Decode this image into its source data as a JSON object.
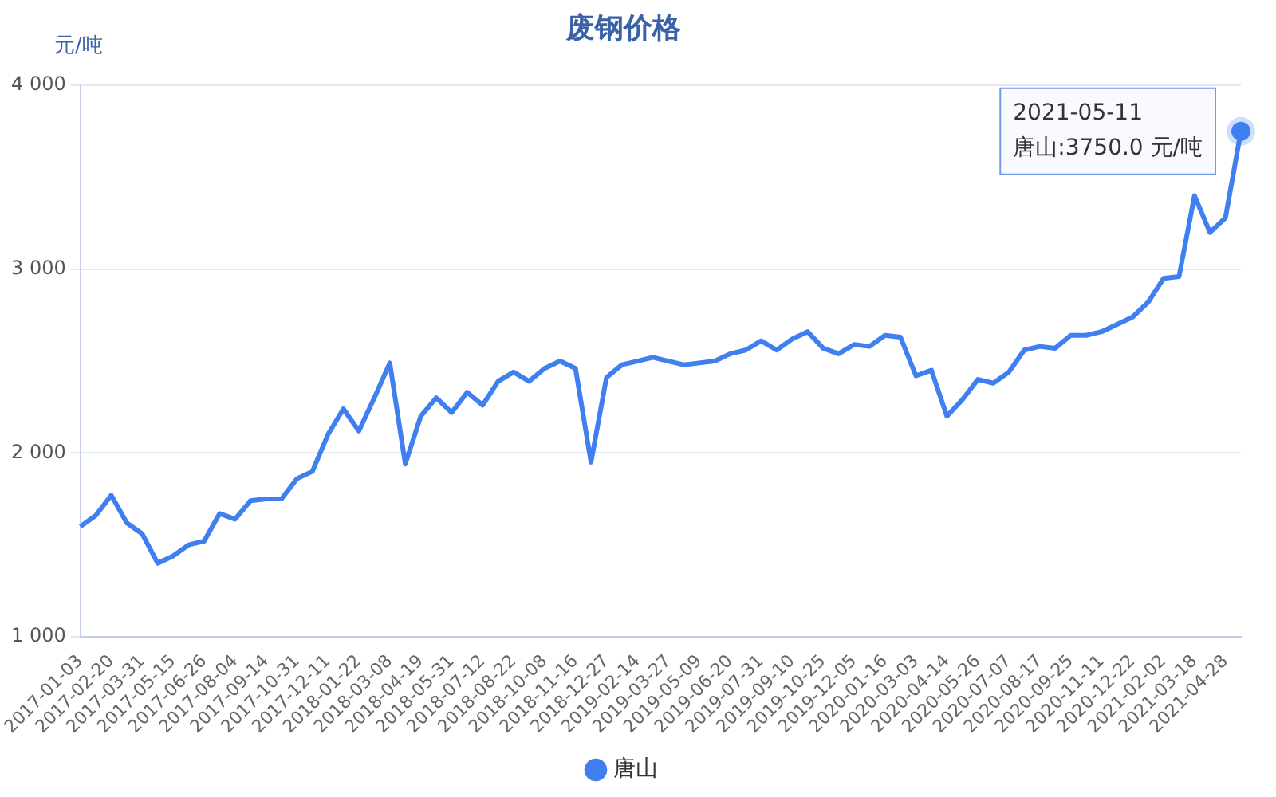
{
  "chart_data": {
    "type": "line",
    "title": "废钢价格",
    "ylabel": "元/吨",
    "categories": [
      "2017-01-03",
      null,
      "2017-02-20",
      null,
      "2017-03-31",
      null,
      "2017-05-15",
      null,
      "2017-06-26",
      null,
      "2017-08-04",
      null,
      "2017-09-14",
      null,
      "2017-10-31",
      null,
      "2017-12-11",
      null,
      "2018-01-22",
      null,
      "2018-03-08",
      null,
      "2018-04-19",
      null,
      "2018-05-31",
      null,
      "2018-07-12",
      null,
      "2018-08-22",
      null,
      "2018-10-08",
      null,
      "2018-11-16",
      null,
      "2018-12-27",
      null,
      "2019-02-14",
      null,
      "2019-03-27",
      null,
      "2019-05-09",
      null,
      "2019-06-20",
      null,
      "2019-07-31",
      null,
      "2019-09-10",
      null,
      "2019-10-25",
      null,
      "2019-12-05",
      null,
      "2020-01-16",
      null,
      "2020-03-03",
      null,
      "2020-04-14",
      null,
      "2020-05-26",
      null,
      "2020-07-07",
      null,
      "2020-08-17",
      null,
      "2020-09-25",
      null,
      "2020-11-11",
      null,
      "2020-12-22",
      null,
      "2021-02-02",
      null,
      "2021-03-18",
      null,
      "2021-04-28",
      null
    ],
    "series": [
      {
        "name": "唐山",
        "color": "#3f7fef",
        "values": [
          1600,
          1660,
          1770,
          1620,
          1560,
          1400,
          1440,
          1500,
          1520,
          1670,
          1640,
          1740,
          1750,
          1750,
          1860,
          1900,
          2100,
          2240,
          2120,
          2300,
          2490,
          1940,
          2200,
          2300,
          2220,
          2330,
          2260,
          2390,
          2440,
          2390,
          2460,
          2500,
          2460,
          1950,
          2410,
          2480,
          2500,
          2520,
          2500,
          2480,
          2490,
          2500,
          2540,
          2560,
          2610,
          2560,
          2620,
          2660,
          2570,
          2540,
          2590,
          2580,
          2640,
          2630,
          2420,
          2450,
          2200,
          2290,
          2400,
          2380,
          2440,
          2560,
          2580,
          2570,
          2640,
          2640,
          2660,
          2700,
          2740,
          2820,
          2950,
          2960,
          3400,
          3200,
          3280,
          3750
        ]
      }
    ],
    "ylim": [
      1000,
      4000
    ],
    "yticks": [
      {
        "value": 1000,
        "label": "1 000"
      },
      {
        "value": 2000,
        "label": "2 000"
      },
      {
        "value": 3000,
        "label": "3 000"
      },
      {
        "value": 4000,
        "label": "4 000"
      }
    ],
    "grid": "y",
    "legend": "bottom",
    "marker": "none",
    "line_style": "solid",
    "annotations": [
      "2021-05-11\n唐山:3750.0 元/吨"
    ]
  }
}
